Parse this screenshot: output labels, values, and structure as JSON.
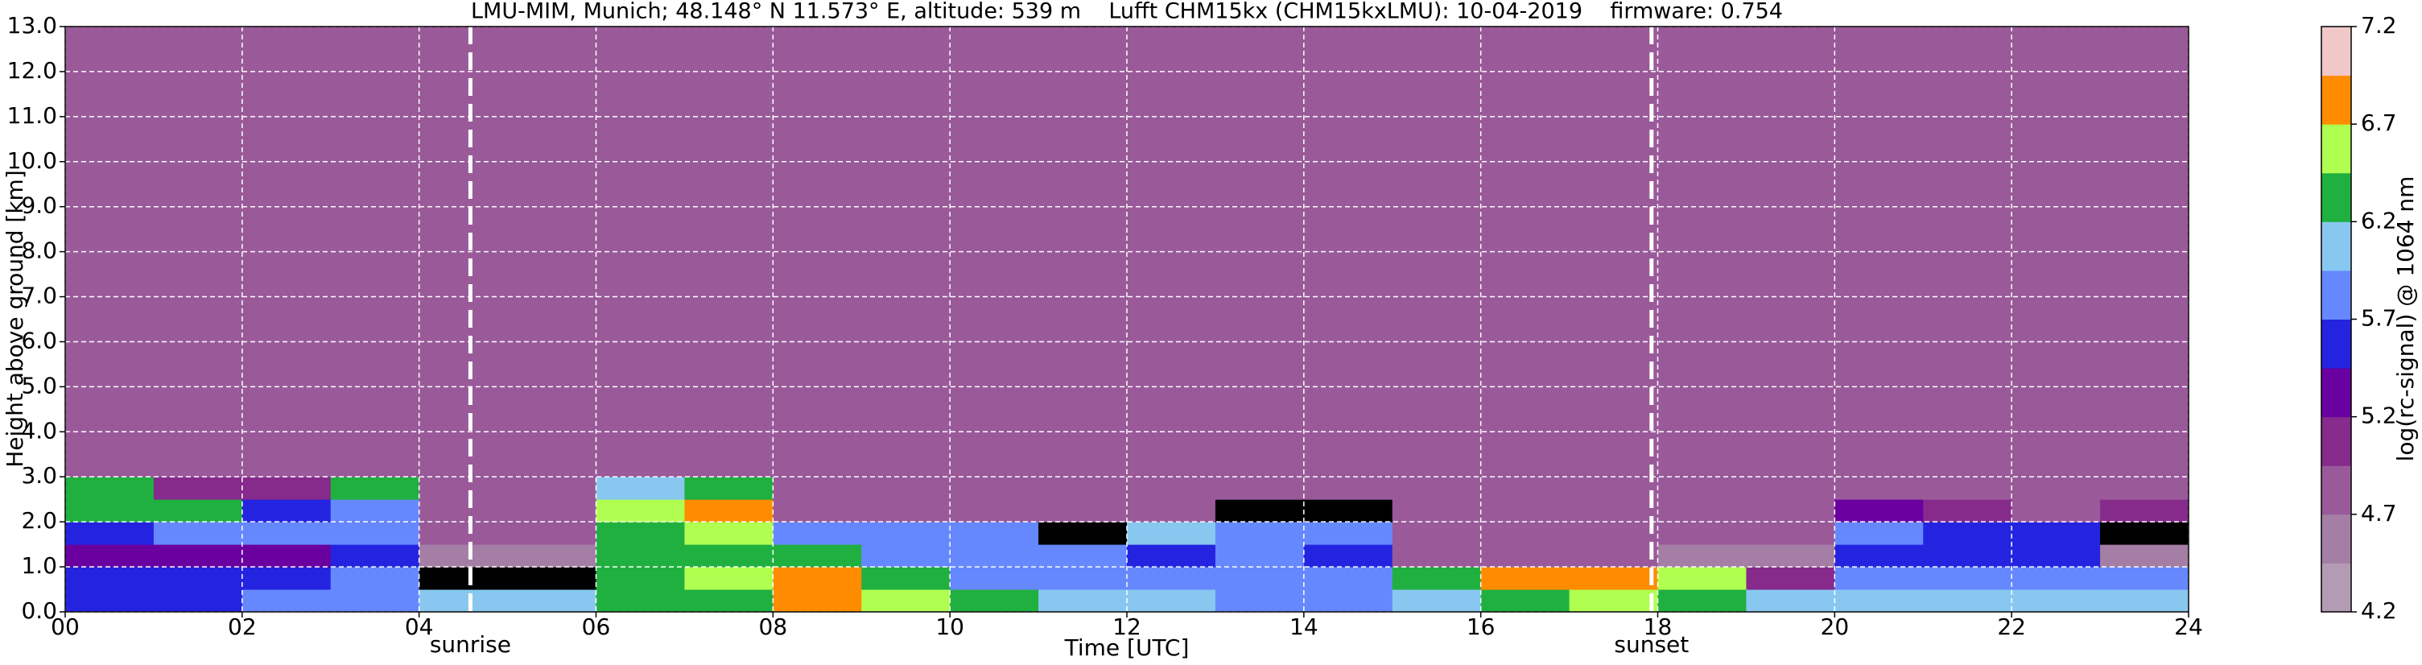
{
  "chart_data": {
    "type": "heatmap",
    "title": "LMU-MIM, Munich; 48.148° N 11.573° E, altitude: 539 m    Lufft CHM15kx (CHM15kxLMU): 10-04-2019    firmware: 0.754",
    "x_label": "Time [UTC]",
    "y_label": "Height above ground [km]",
    "colorbar_label": "log(rc-signal) @ 1064 nm",
    "xlim": [
      0,
      24
    ],
    "xticks": [
      {
        "value": 0,
        "label": "00"
      },
      {
        "value": 2,
        "label": "02"
      },
      {
        "value": 4,
        "label": "04"
      },
      {
        "value": 6,
        "label": "06"
      },
      {
        "value": 8,
        "label": "08"
      },
      {
        "value": 10,
        "label": "10"
      },
      {
        "value": 12,
        "label": "12"
      },
      {
        "value": 14,
        "label": "14"
      },
      {
        "value": 16,
        "label": "16"
      },
      {
        "value": 18,
        "label": "18"
      },
      {
        "value": 20,
        "label": "20"
      },
      {
        "value": 22,
        "label": "22"
      },
      {
        "value": 24,
        "label": "24"
      }
    ],
    "ylim": [
      0,
      13
    ],
    "yticks": [
      {
        "value": 0,
        "label": "0.0"
      },
      {
        "value": 1,
        "label": "1.0"
      },
      {
        "value": 2,
        "label": "2.0"
      },
      {
        "value": 3,
        "label": "3.0"
      },
      {
        "value": 4,
        "label": "4.0"
      },
      {
        "value": 5,
        "label": "5.0"
      },
      {
        "value": 6,
        "label": "6.0"
      },
      {
        "value": 7,
        "label": "7.0"
      },
      {
        "value": 8,
        "label": "8.0"
      },
      {
        "value": 9,
        "label": "9.0"
      },
      {
        "value": 10,
        "label": "10.0"
      },
      {
        "value": 11,
        "label": "11.0"
      },
      {
        "value": 12,
        "label": "12.0"
      },
      {
        "value": 13,
        "label": "13.0"
      }
    ],
    "grid": true,
    "clim": [
      4.2,
      7.2
    ],
    "cticks": [
      4.2,
      4.7,
      5.2,
      5.7,
      6.2,
      6.7,
      7.2
    ],
    "colors": [
      "#b49bb4",
      "#a47ea4",
      "#9a5a9a",
      "#862a8c",
      "#6a00a0",
      "#2424e0",
      "#6688ff",
      "#88c8f0",
      "#20b040",
      "#b0ff50",
      "#ff8c00",
      "#f0c8c8"
    ],
    "under_color": "#000000",
    "x_edges": [
      0,
      1,
      2,
      3,
      4,
      5,
      6,
      7,
      8,
      9,
      10,
      11,
      12,
      13,
      14,
      15,
      16,
      17,
      18,
      19,
      20,
      21,
      22,
      23,
      24
    ],
    "y_edges": [
      0,
      0.5,
      1,
      1.5,
      2,
      2.5,
      3,
      13
    ],
    "z": [
      [
        5.6,
        5.6,
        5.7,
        5.8,
        6.0,
        6.0,
        6.3,
        6.4,
        6.8,
        6.6,
        6.2,
        6.0,
        6.0,
        5.9,
        5.9,
        6.0,
        6.4,
        6.6,
        6.3,
        6.0,
        6.0,
        6.0,
        6.0,
        6.0
      ],
      [
        5.5,
        5.5,
        5.5,
        5.7,
        4.0,
        4.0,
        6.3,
        6.5,
        6.9,
        6.2,
        5.9,
        5.8,
        5.8,
        5.8,
        5.8,
        6.2,
        6.8,
        6.9,
        6.5,
        5.0,
        5.8,
        5.9,
        5.9,
        5.9
      ],
      [
        5.3,
        5.3,
        5.3,
        5.5,
        4.6,
        4.6,
        6.2,
        6.2,
        6.3,
        5.9,
        5.8,
        5.7,
        5.6,
        5.7,
        5.6,
        4.7,
        4.7,
        4.7,
        4.6,
        4.6,
        5.6,
        5.6,
        5.6,
        4.6
      ],
      [
        5.6,
        5.8,
        5.9,
        5.8,
        4.8,
        4.8,
        6.3,
        6.6,
        5.9,
        5.8,
        5.8,
        4.0,
        6.0,
        5.8,
        5.7,
        4.8,
        4.8,
        4.8,
        4.8,
        4.8,
        5.7,
        5.5,
        5.6,
        4.0
      ],
      [
        6.4,
        6.2,
        5.5,
        5.8,
        4.8,
        4.8,
        6.5,
        6.7,
        4.9,
        4.8,
        4.8,
        4.8,
        4.9,
        4.0,
        4.0,
        4.9,
        4.9,
        4.9,
        4.9,
        4.9,
        5.2,
        5.0,
        4.9,
        5.0
      ],
      [
        6.2,
        5.0,
        5.0,
        6.3,
        4.9,
        4.9,
        6.1,
        6.4,
        4.9,
        4.9,
        4.9,
        4.9,
        4.9,
        4.9,
        4.9,
        4.9,
        4.9,
        4.9,
        4.9,
        4.9,
        4.9,
        4.9,
        4.9,
        4.9
      ],
      [
        4.9,
        4.9,
        4.9,
        4.9,
        4.9,
        4.9,
        4.9,
        4.9,
        4.9,
        4.9,
        4.9,
        4.9,
        4.9,
        4.9,
        4.9,
        4.9,
        4.9,
        4.9,
        4.9,
        4.9,
        4.9,
        4.9,
        4.9,
        4.9
      ]
    ],
    "annotations": [
      {
        "text": "sunrise",
        "x": 4.58
      },
      {
        "text": "sunset",
        "x": 17.93
      }
    ]
  }
}
